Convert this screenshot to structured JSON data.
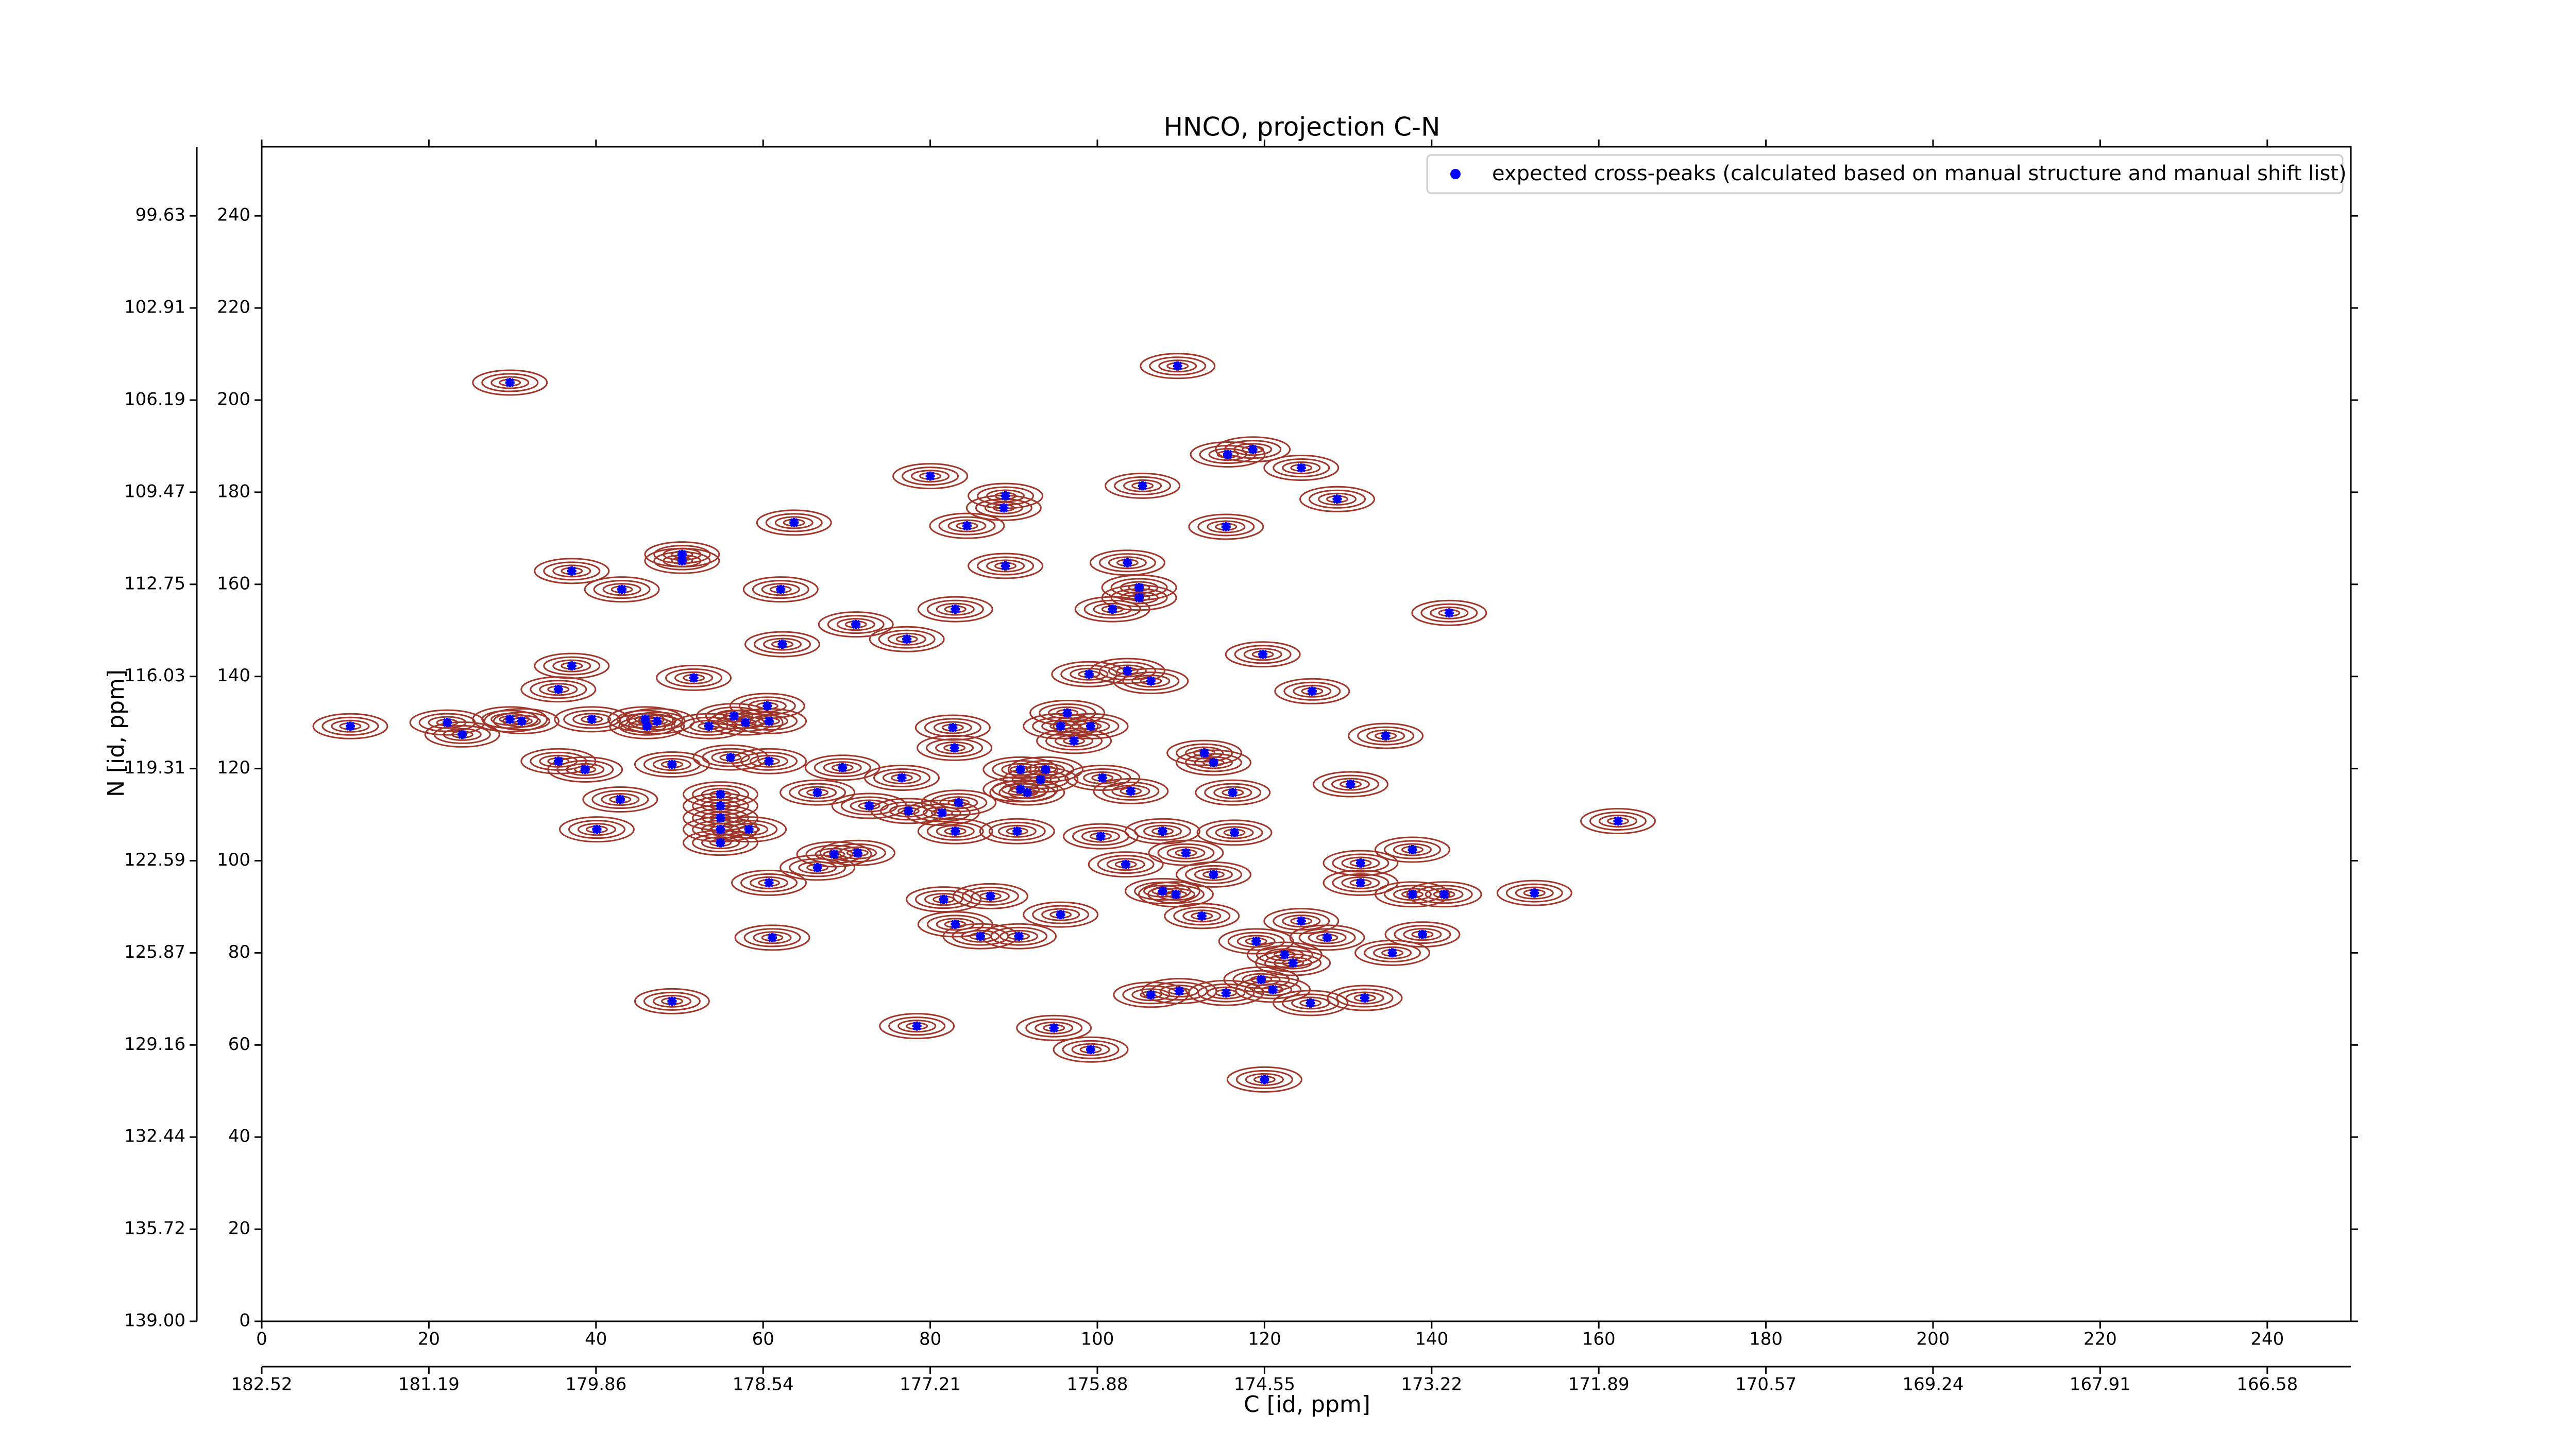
{
  "chart_data": {
    "type": "scatter",
    "title": "HNCO, projection C-N",
    "xlabel": "C [id, ppm]",
    "ylabel": "N [id, ppm]",
    "xlim": [
      0,
      250
    ],
    "ylim": [
      0,
      255
    ],
    "xticks": [
      0,
      20,
      40,
      60,
      80,
      100,
      120,
      140,
      160,
      180,
      200,
      220,
      240
    ],
    "yticks": [
      0,
      20,
      40,
      60,
      80,
      100,
      120,
      140,
      160,
      180,
      200,
      220,
      240
    ],
    "x_ppm_ticks": [
      {
        "value": 0,
        "label": "182.52"
      },
      {
        "value": 20,
        "label": "181.19"
      },
      {
        "value": 40,
        "label": "179.86"
      },
      {
        "value": 60,
        "label": "178.54"
      },
      {
        "value": 80,
        "label": "177.21"
      },
      {
        "value": 100,
        "label": "175.88"
      },
      {
        "value": 120,
        "label": "174.55"
      },
      {
        "value": 140,
        "label": "173.22"
      },
      {
        "value": 160,
        "label": "171.89"
      },
      {
        "value": 180,
        "label": "170.57"
      },
      {
        "value": 200,
        "label": "169.24"
      },
      {
        "value": 220,
        "label": "167.91"
      },
      {
        "value": 240,
        "label": "166.58"
      }
    ],
    "y_ppm_ticks": [
      {
        "value": 0,
        "label": "139.00"
      },
      {
        "value": 20,
        "label": "135.72"
      },
      {
        "value": 40,
        "label": "132.44"
      },
      {
        "value": 60,
        "label": "129.16"
      },
      {
        "value": 80,
        "label": "125.87"
      },
      {
        "value": 100,
        "label": "122.59"
      },
      {
        "value": 120,
        "label": "119.31"
      },
      {
        "value": 140,
        "label": "116.03"
      },
      {
        "value": 160,
        "label": "112.75"
      },
      {
        "value": 180,
        "label": "109.47"
      },
      {
        "value": 200,
        "label": "106.19"
      },
      {
        "value": 220,
        "label": "102.91"
      },
      {
        "value": 240,
        "label": "99.63"
      }
    ],
    "legend": "upper right",
    "contour_color": "#a0352a",
    "series": [
      {
        "name": "expected cross-peaks (calculated based on manual structure and manual shift list)",
        "color": "#0000ff",
        "x": [
          29.7,
          109.6,
          115.6,
          118.6,
          124.4,
          105.4,
          80.0,
          89.0,
          88.8,
          84.4,
          63.7,
          115.4,
          50.3,
          50.3,
          128.7,
          37.1,
          43.1,
          89.0,
          103.6,
          62.1,
          105.0,
          105.0,
          101.8,
          83.0,
          71.1,
          77.2,
          62.3,
          142.1,
          119.8,
          37.1,
          35.5,
          51.7,
          99.0,
          103.6,
          106.4,
          125.7,
          10.6,
          22.2,
          24.0,
          29.7,
          31.1,
          39.5,
          45.9,
          46.1,
          47.3,
          53.5,
          56.5,
          57.9,
          60.5,
          60.7,
          82.7,
          82.9,
          96.4,
          95.6,
          99.2,
          97.2,
          134.5,
          112.8,
          113.9,
          35.5,
          38.7,
          49.1,
          56.1,
          60.7,
          69.5,
          76.6,
          90.8,
          93.8,
          93.2,
          100.6,
          130.3,
          42.9,
          66.5,
          72.7,
          77.4,
          81.4,
          83.4,
          90.8,
          91.6,
          104.0,
          54.9,
          54.9,
          54.9,
          54.9,
          54.9,
          58.3,
          40.1,
          83.0,
          90.4,
          100.4,
          107.8,
          116.2,
          116.4,
          162.3,
          137.7,
          110.6,
          103.4,
          68.5,
          66.5,
          71.3,
          60.7,
          113.9,
          131.5,
          131.5,
          107.8,
          109.4,
          81.6,
          87.2,
          137.7,
          141.5,
          152.3,
          95.6,
          112.5,
          83.0,
          86.0,
          90.6,
          61.1,
          119.0,
          124.4,
          127.5,
          138.9,
          135.3,
          123.4,
          122.4,
          119.6,
          106.4,
          109.8,
          115.4,
          121.0,
          125.5,
          132.0,
          49.1,
          78.4,
          94.8,
          99.2,
          120.0
        ],
        "values": [
          203.8,
          207.4,
          188.2,
          189.3,
          185.3,
          181.4,
          183.5,
          179.2,
          176.6,
          172.7,
          173.4,
          172.5,
          166.5,
          165.1,
          178.5,
          162.9,
          158.9,
          164.0,
          164.7,
          158.9,
          159.3,
          157.1,
          154.6,
          154.6,
          151.3,
          148.1,
          147.0,
          153.8,
          144.8,
          142.3,
          137.2,
          139.7,
          140.5,
          141.2,
          139.0,
          136.8,
          129.2,
          130.0,
          127.4,
          130.7,
          130.3,
          130.7,
          130.7,
          129.2,
          130.3,
          129.2,
          131.4,
          130.0,
          133.6,
          130.3,
          128.9,
          124.5,
          132.1,
          129.2,
          129.2,
          126.0,
          127.1,
          123.4,
          121.3,
          121.6,
          119.8,
          120.9,
          122.4,
          121.6,
          120.2,
          118.0,
          119.8,
          119.8,
          117.6,
          118.0,
          116.6,
          113.3,
          114.8,
          111.9,
          110.8,
          110.4,
          112.6,
          115.5,
          114.8,
          115.1,
          114.4,
          111.9,
          109.3,
          106.8,
          103.9,
          106.8,
          106.8,
          106.4,
          106.4,
          105.3,
          106.4,
          114.8,
          106.1,
          108.6,
          102.4,
          101.7,
          99.2,
          101.4,
          98.5,
          101.7,
          95.2,
          97.0,
          99.5,
          95.2,
          93.4,
          92.7,
          91.6,
          92.3,
          92.7,
          92.7,
          93.0,
          88.3,
          88.0,
          86.2,
          83.6,
          83.6,
          83.3,
          82.5,
          86.9,
          83.3,
          84.0,
          80.0,
          77.8,
          79.6,
          74.2,
          70.9,
          71.7,
          71.3,
          72.0,
          69.1,
          70.2,
          69.5,
          64.1,
          63.7,
          59.0,
          52.5
        ]
      }
    ]
  }
}
